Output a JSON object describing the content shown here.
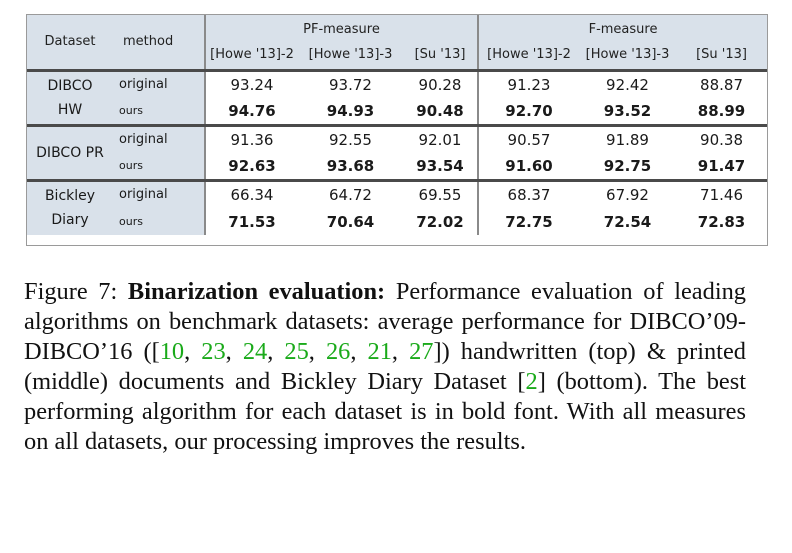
{
  "table": {
    "header": {
      "dataset": "Dataset",
      "method": "method",
      "groups": [
        "PF-measure",
        "F-measure"
      ],
      "columns": [
        "[Howe '13]-2",
        "[Howe '13]-3",
        "[Su '13]",
        "[Howe '13]-2",
        "[Howe '13]-3",
        "[Su '13]"
      ]
    },
    "blocks": [
      {
        "dataset": [
          "DIBCO",
          "HW"
        ],
        "rows": [
          {
            "method": "original",
            "values": [
              "93.24",
              "93.72",
              "90.28",
              "91.23",
              "92.42",
              "88.87"
            ],
            "bold": false
          },
          {
            "method": "ours",
            "values": [
              "94.76",
              "94.93",
              "90.48",
              "92.70",
              "93.52",
              "88.99"
            ],
            "bold": true
          }
        ]
      },
      {
        "dataset": [
          "DIBCO PR"
        ],
        "rows": [
          {
            "method": "original",
            "values": [
              "91.36",
              "92.55",
              "92.01",
              "90.57",
              "91.89",
              "90.38"
            ],
            "bold": false
          },
          {
            "method": "ours",
            "values": [
              "92.63",
              "93.68",
              "93.54",
              "91.60",
              "92.75",
              "91.47"
            ],
            "bold": true
          }
        ]
      },
      {
        "dataset": [
          "Bickley",
          "Diary"
        ],
        "rows": [
          {
            "method": "original",
            "values": [
              "66.34",
              "64.72",
              "69.55",
              "68.37",
              "67.92",
              "71.46"
            ],
            "bold": false
          },
          {
            "method": "ours",
            "values": [
              "71.53",
              "70.64",
              "72.02",
              "72.75",
              "72.54",
              "72.83"
            ],
            "bold": true
          }
        ]
      }
    ]
  },
  "caption": {
    "label": "Figure 7:",
    "title": "Binarization evaluation:",
    "text_1": "Performance evaluation of leading algorithms on benchmark datasets: average performance for DIBCO’09-DIBCO’16 ([",
    "refs_a": [
      "10",
      "23",
      "24",
      "25",
      "26",
      "21",
      "27"
    ],
    "text_2": "]) handwritten (top) & printed (middle) documents and Bickley Diary Dataset [",
    "ref_b": "2",
    "text_3": "] (bottom). The best performing algorithm for each dataset is in bold font. With all measures on all datasets, our processing improves the results."
  }
}
